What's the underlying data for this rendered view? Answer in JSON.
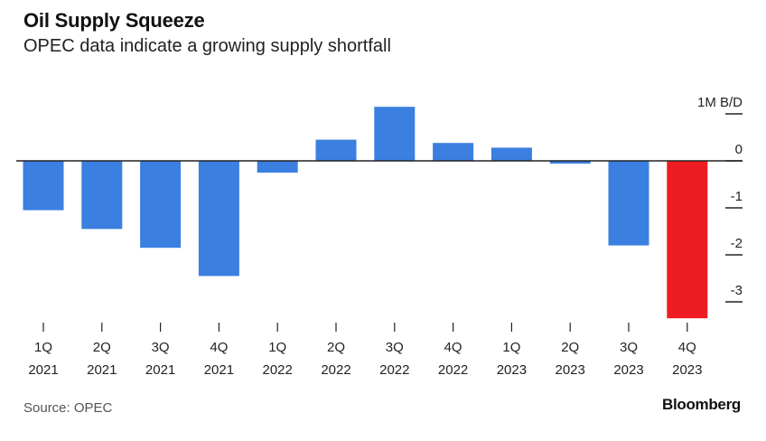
{
  "header": {
    "title": "Oil Supply Squeeze",
    "subtitle": "OPEC data indicate a growing supply shortfall"
  },
  "footer": {
    "source": "Source: OPEC",
    "brand": "Bloomberg"
  },
  "colors": {
    "bar": "#3b7fe0",
    "highlight": "#ee1d23",
    "axis": "#222222"
  },
  "chart_data": {
    "type": "bar",
    "title": "Oil Supply Squeeze",
    "subtitle": "OPEC data indicate a growing supply shortfall",
    "unit_label": "1M B/D",
    "categories": [
      [
        "1Q",
        "2021"
      ],
      [
        "2Q",
        "2021"
      ],
      [
        "3Q",
        "2021"
      ],
      [
        "4Q",
        "2021"
      ],
      [
        "1Q",
        "2022"
      ],
      [
        "2Q",
        "2022"
      ],
      [
        "3Q",
        "2022"
      ],
      [
        "4Q",
        "2022"
      ],
      [
        "1Q",
        "2023"
      ],
      [
        "2Q",
        "2023"
      ],
      [
        "3Q",
        "2023"
      ],
      [
        "4Q",
        "2023"
      ]
    ],
    "values": [
      -1.05,
      -1.45,
      -1.85,
      -2.45,
      -0.25,
      0.45,
      1.15,
      0.38,
      0.28,
      -0.06,
      -1.8,
      -3.35
    ],
    "highlight_index": 11,
    "yticks": [
      1,
      0,
      -1,
      -2,
      -3
    ],
    "ytick_labels": [
      "1M B/D",
      "0",
      "-1",
      "-2",
      "-3"
    ],
    "ylim": [
      -3.35,
      1.15
    ],
    "grid": false,
    "legend": "none"
  }
}
